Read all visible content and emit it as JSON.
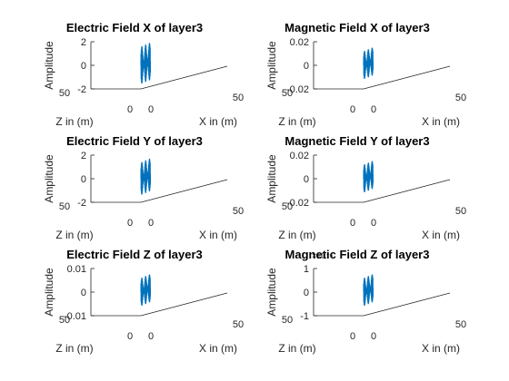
{
  "figure": {
    "background": "#ffffff",
    "line_color": "#0072bd",
    "axis_color": "#262626"
  },
  "chart_data": [
    {
      "type": "line",
      "view": "3d",
      "title": "Electric Field X of layer3",
      "xlabel": "X in (m)",
      "ylabel": "Z in (m)",
      "zlabel": "Amplitude",
      "xticks": [
        "0",
        "50"
      ],
      "yticks": [
        "0",
        "50"
      ],
      "zticks": [
        "2",
        "0",
        "-2"
      ],
      "zlim": [
        -2,
        2
      ],
      "exponent": "",
      "series": [
        {
          "amplitude": 1.6,
          "x_extent": [
            0,
            9
          ],
          "z_extent": [
            0,
            6
          ],
          "color": "#0072bd"
        }
      ]
    },
    {
      "type": "line",
      "view": "3d",
      "title": "Magnetic Field X of layer3",
      "xlabel": "X in (m)",
      "ylabel": "Z in (m)",
      "zlabel": "Amplitude",
      "xticks": [
        "0",
        "50"
      ],
      "yticks": [
        "0",
        "50"
      ],
      "zticks": [
        "0.02",
        "0",
        "-0.02"
      ],
      "zlim": [
        -0.02,
        0.02
      ],
      "exponent": "",
      "series": [
        {
          "amplitude": 0.012,
          "x_extent": [
            0,
            9
          ],
          "z_extent": [
            0,
            6
          ],
          "color": "#0072bd"
        }
      ]
    },
    {
      "type": "line",
      "view": "3d",
      "title": "Electric Field Y of layer3",
      "xlabel": "X in (m)",
      "ylabel": "Z in (m)",
      "zlabel": "Amplitude",
      "xticks": [
        "0",
        "50"
      ],
      "yticks": [
        "0",
        "50"
      ],
      "zticks": [
        "2",
        "0",
        "-2"
      ],
      "zlim": [
        -2,
        2
      ],
      "exponent": "",
      "series": [
        {
          "amplitude": 1.4,
          "x_extent": [
            0,
            9
          ],
          "z_extent": [
            0,
            6
          ],
          "color": "#0072bd"
        }
      ]
    },
    {
      "type": "line",
      "view": "3d",
      "title": "Magnetic Field Y of layer3",
      "xlabel": "X in (m)",
      "ylabel": "Z in (m)",
      "zlabel": "Amplitude",
      "xticks": [
        "0",
        "50"
      ],
      "yticks": [
        "0",
        "50"
      ],
      "zticks": [
        "0.02",
        "0",
        "-0.02"
      ],
      "zlim": [
        -0.02,
        0.02
      ],
      "exponent": "",
      "series": [
        {
          "amplitude": 0.012,
          "x_extent": [
            0,
            9
          ],
          "z_extent": [
            0,
            6
          ],
          "color": "#0072bd"
        }
      ]
    },
    {
      "type": "line",
      "view": "3d",
      "title": "Electric Field Z of layer3",
      "xlabel": "X in (m)",
      "ylabel": "Z in (m)",
      "zlabel": "Amplitude",
      "xticks": [
        "0",
        "50"
      ],
      "yticks": [
        "0",
        "50"
      ],
      "zticks": [
        "0.01",
        "0",
        "-0.01"
      ],
      "zlim": [
        -0.01,
        0.01
      ],
      "exponent": "",
      "series": [
        {
          "amplitude": 0.006,
          "x_extent": [
            0,
            9
          ],
          "z_extent": [
            0,
            6
          ],
          "color": "#0072bd"
        }
      ]
    },
    {
      "type": "line",
      "view": "3d",
      "title": "Magnetic Field Z of layer3",
      "xlabel": "X in (m)",
      "ylabel": "Z in (m)",
      "zlabel": "Amplitude",
      "xticks": [
        "0",
        "50"
      ],
      "yticks": [
        "0",
        "50"
      ],
      "zticks": [
        "1",
        "0",
        "-1"
      ],
      "zlim": [
        -1,
        1
      ],
      "exponent": "×10⁻⁵",
      "series": [
        {
          "amplitude": 0.6,
          "x_extent": [
            0,
            9
          ],
          "z_extent": [
            0,
            6
          ],
          "color": "#0072bd"
        }
      ]
    }
  ]
}
